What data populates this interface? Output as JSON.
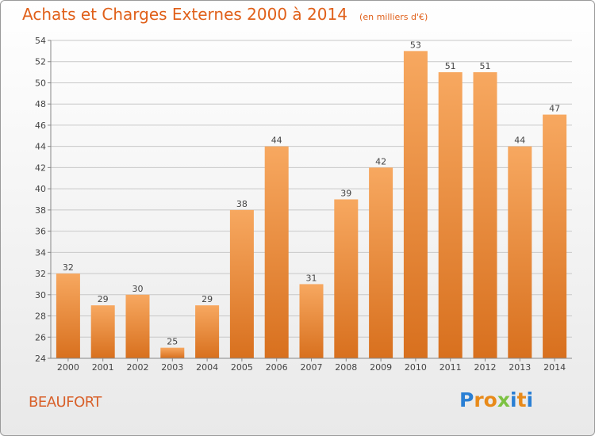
{
  "title": "Achats et Charges Externes 2000 à 2014",
  "unit_note": "(en milliers d'€)",
  "commune": "BEAUFORT",
  "logo": {
    "letters": [
      "P",
      "r",
      "o",
      "x",
      "i",
      "t",
      "i"
    ],
    "colors": [
      "#2a7fd4",
      "#e88a1a",
      "#e88a1a",
      "#7cc242",
      "#2a7fd4",
      "#e88a1a",
      "#2a7fd4"
    ]
  },
  "colors": {
    "bar_top": "#f7a860",
    "bar_bottom": "#d8701e",
    "grid": "#c8c8c8",
    "text": "#444444",
    "title": "#e0601a"
  },
  "chart_data": {
    "type": "bar",
    "categories": [
      "2000",
      "2001",
      "2002",
      "2003",
      "2004",
      "2005",
      "2006",
      "2007",
      "2008",
      "2009",
      "2010",
      "2011",
      "2012",
      "2013",
      "2014"
    ],
    "values": [
      32,
      29,
      30,
      25,
      29,
      38,
      44,
      31,
      39,
      42,
      53,
      51,
      51,
      44,
      47
    ],
    "data_labels": [
      "32",
      "29",
      "30",
      "25",
      "29",
      "38",
      "44",
      "31",
      "39",
      "42",
      "53",
      "51",
      "51",
      "44",
      "47"
    ],
    "ylim": [
      24,
      54
    ],
    "yticks": [
      "24",
      "26",
      "28",
      "30",
      "32",
      "34",
      "36",
      "38",
      "40",
      "42",
      "44",
      "46",
      "48",
      "50",
      "52",
      "54"
    ],
    "grid": true
  }
}
